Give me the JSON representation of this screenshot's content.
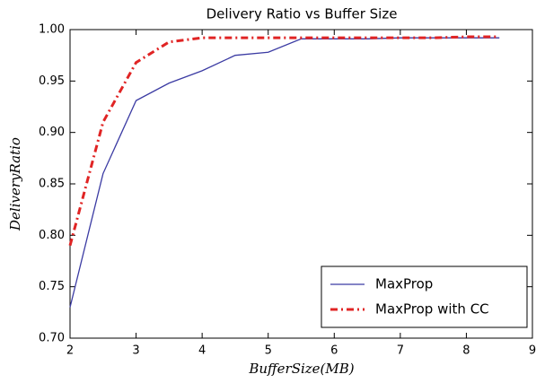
{
  "chart_data": {
    "type": "line",
    "title": "Delivery Ratio vs Buffer Size",
    "x_label": "BufferSize(MB)",
    "y_label": "DeliveryRatio",
    "x": [
      2,
      2.5,
      3,
      3.5,
      4,
      4.5,
      5,
      5.5,
      6,
      6.5,
      7,
      7.5,
      8,
      8.5
    ],
    "series": [
      {
        "name": "MaxProp",
        "color": "#3b3ba3",
        "dash": "solid",
        "values": [
          0.73,
          0.86,
          0.931,
          0.948,
          0.96,
          0.975,
          0.978,
          0.991,
          0.991,
          0.991,
          0.992,
          0.992,
          0.992,
          0.992
        ]
      },
      {
        "name": "MaxProp with CC",
        "color": "#e02424",
        "dash": "dashdot",
        "values": [
          0.79,
          0.91,
          0.968,
          0.988,
          0.992,
          0.992,
          0.992,
          0.992,
          0.992,
          0.992,
          0.992,
          0.992,
          0.993,
          0.993
        ]
      }
    ],
    "xlim": [
      2,
      9
    ],
    "xticks": [
      2,
      3,
      4,
      5,
      6,
      7,
      8,
      9
    ],
    "ylim": [
      0.7,
      1.0
    ],
    "yticks": [
      {
        "value": 0.7,
        "label": "0.70"
      },
      {
        "value": 0.75,
        "label": "0.75"
      },
      {
        "value": 0.8,
        "label": "0.80"
      },
      {
        "value": 0.85,
        "label": "0.85"
      },
      {
        "value": 0.9,
        "label": "0.90"
      },
      {
        "value": 0.95,
        "label": "0.95"
      },
      {
        "value": 1.0,
        "label": "1.00"
      }
    ],
    "grid": false,
    "legend": "lower right"
  }
}
